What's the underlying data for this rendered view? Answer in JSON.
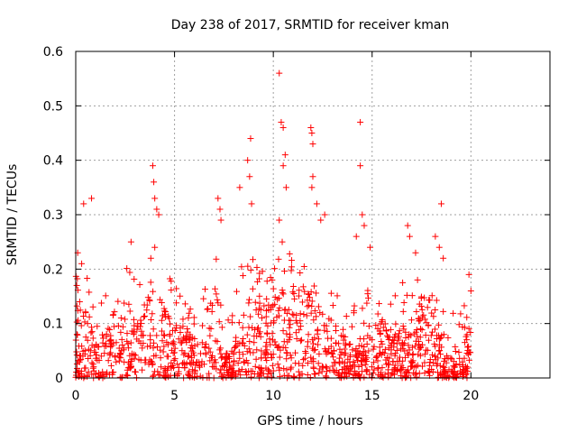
{
  "chart_data": {
    "type": "scatter",
    "title": "Day 238 of 2017, SRMTID for receiver kman",
    "xlabel": "GPS time / hours",
    "ylabel": "SRMTID / TECUs",
    "xlim": [
      0,
      24
    ],
    "ylim": [
      0,
      0.6
    ],
    "xticks": [
      0,
      5,
      10,
      15,
      20
    ],
    "xtick_labels": [
      "0",
      "5",
      "10",
      "15",
      "20"
    ],
    "yticks": [
      0,
      0.1,
      0.2,
      0.3,
      0.4,
      0.5,
      0.6
    ],
    "ytick_labels": [
      "0",
      "0.1",
      "0.2",
      "0.3",
      "0.4",
      "0.5",
      "0.6"
    ],
    "grid": true,
    "marker": "+",
    "color": "#ff0000",
    "data_range_hours": [
      0,
      20
    ],
    "series": [
      {
        "name": "SRMTID",
        "points": [
          [
            0.05,
            0.17
          ],
          [
            0.1,
            0.23
          ],
          [
            0.2,
            0.14
          ],
          [
            0.3,
            0.21
          ],
          [
            0.4,
            0.32
          ],
          [
            0.5,
            0.12
          ],
          [
            0.6,
            0.1
          ],
          [
            0.8,
            0.33
          ],
          [
            0.9,
            0.0
          ],
          [
            2.8,
            0.25
          ],
          [
            3.9,
            0.39
          ],
          [
            3.95,
            0.36
          ],
          [
            4.0,
            0.33
          ],
          [
            4.1,
            0.31
          ],
          [
            4.2,
            0.3
          ],
          [
            4.0,
            0.24
          ],
          [
            3.8,
            0.22
          ],
          [
            7.2,
            0.33
          ],
          [
            7.3,
            0.31
          ],
          [
            7.35,
            0.29
          ],
          [
            8.3,
            0.35
          ],
          [
            8.7,
            0.4
          ],
          [
            8.8,
            0.37
          ],
          [
            8.85,
            0.44
          ],
          [
            8.9,
            0.32
          ],
          [
            10.3,
            0.56
          ],
          [
            10.4,
            0.47
          ],
          [
            10.5,
            0.46
          ],
          [
            10.6,
            0.41
          ],
          [
            10.5,
            0.39
          ],
          [
            10.65,
            0.35
          ],
          [
            10.3,
            0.29
          ],
          [
            10.45,
            0.25
          ],
          [
            11.9,
            0.46
          ],
          [
            11.95,
            0.45
          ],
          [
            12.0,
            0.43
          ],
          [
            12.0,
            0.37
          ],
          [
            11.95,
            0.35
          ],
          [
            12.2,
            0.32
          ],
          [
            12.4,
            0.29
          ],
          [
            12.6,
            0.3
          ],
          [
            14.4,
            0.47
          ],
          [
            14.4,
            0.39
          ],
          [
            14.5,
            0.3
          ],
          [
            14.6,
            0.28
          ],
          [
            14.2,
            0.26
          ],
          [
            14.9,
            0.24
          ],
          [
            16.8,
            0.28
          ],
          [
            16.9,
            0.26
          ],
          [
            17.2,
            0.23
          ],
          [
            18.2,
            0.26
          ],
          [
            18.5,
            0.32
          ],
          [
            18.4,
            0.24
          ],
          [
            18.6,
            0.22
          ],
          [
            19.9,
            0.19
          ],
          [
            20.0,
            0.16
          ]
        ]
      }
    ]
  }
}
